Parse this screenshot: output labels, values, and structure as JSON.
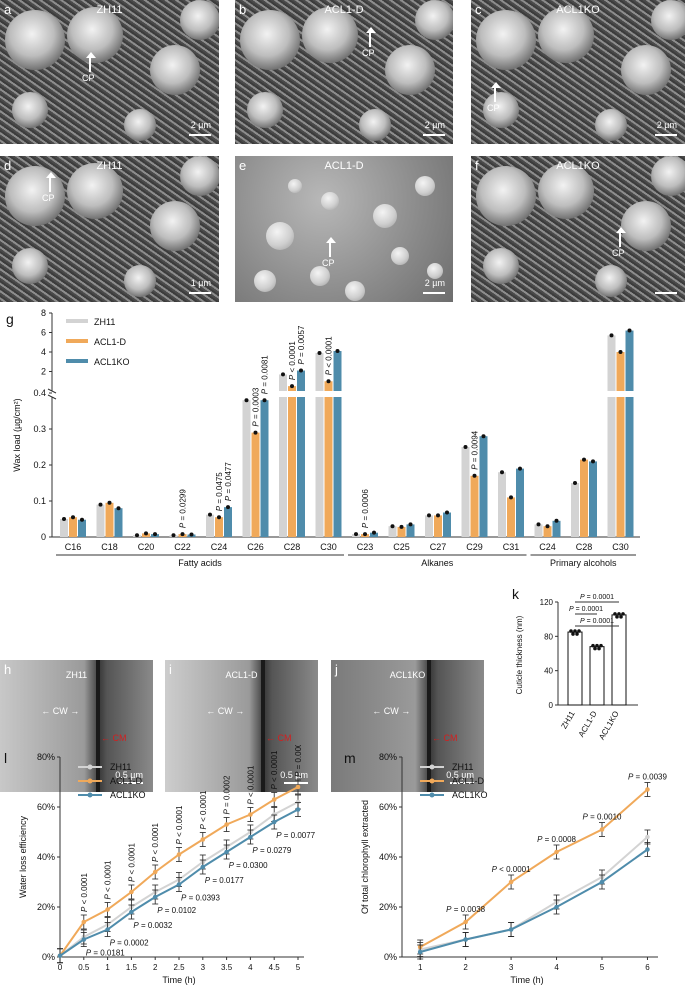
{
  "sem_panels": [
    {
      "letter": "a",
      "title": "ZH11",
      "cp": "CP",
      "scale": "2 µm"
    },
    {
      "letter": "b",
      "title": "ACL1-D",
      "cp": "CP",
      "scale": "2 µm"
    },
    {
      "letter": "c",
      "title": "ACL1KO",
      "cp": "CP",
      "scale": "2 µm"
    },
    {
      "letter": "d",
      "title": "ZH11",
      "cp": "CP",
      "scale": "1 µm"
    },
    {
      "letter": "e",
      "title": "ACL1-D",
      "cp": "CP",
      "scale": "2 µm"
    },
    {
      "letter": "f",
      "title": "ACL1KO",
      "cp": "CP",
      "scale": ""
    }
  ],
  "tem_panels": [
    {
      "letter": "h",
      "title": "ZH11",
      "cw": "CW",
      "cm": "CM",
      "scale": "0.5 µm"
    },
    {
      "letter": "i",
      "title": "ACL1-D",
      "cw": "CW",
      "cm": "CM",
      "scale": "0.5 µm"
    },
    {
      "letter": "j",
      "title": "ACL1KO",
      "cw": "CW",
      "cm": "CM",
      "scale": "0.5 µm"
    }
  ],
  "colors": {
    "ZH11": "#d3d3d3",
    "ACL1-D": "#f0a95a",
    "ACL1KO": "#4f8cab"
  },
  "chart_data": [
    {
      "panel": "g",
      "type": "bar",
      "ylabel": "Wax load (µg/cm²)",
      "legend": [
        "ZH11",
        "ACL1-D",
        "ACL1KO"
      ],
      "legend_position": "top-left",
      "broken_axis": {
        "lower": [
          0,
          0.4
        ],
        "upper": [
          0,
          8
        ]
      },
      "lower_ticks": [
        "0",
        "0.1",
        "0.2",
        "0.3",
        "0.4"
      ],
      "upper_ticks": [
        "2",
        "4",
        "6",
        "8"
      ],
      "categories": [
        "C16",
        "C18",
        "C20",
        "C22",
        "C24",
        "C26",
        "C28",
        "C30",
        "C23",
        "C25",
        "C27",
        "C29",
        "C31",
        "C24",
        "C28",
        "C30"
      ],
      "groups": [
        {
          "name": "Fatty acids",
          "count": 8
        },
        {
          "name": "Alkanes",
          "count": 5
        },
        {
          "name": "Primary alcohols",
          "count": 3
        }
      ],
      "series": [
        {
          "name": "ZH11",
          "values": [
            0.05,
            0.09,
            0.005,
            0.005,
            0.062,
            0.38,
            1.7,
            3.9,
            0.008,
            0.03,
            0.06,
            0.25,
            0.18,
            0.035,
            0.15,
            5.7
          ]
        },
        {
          "name": "ACL1-D",
          "values": [
            0.055,
            0.095,
            0.01,
            0.008,
            0.055,
            0.29,
            0.5,
            1.0,
            0.008,
            0.028,
            0.06,
            0.17,
            0.11,
            0.03,
            0.215,
            4.0
          ]
        },
        {
          "name": "ACL1KO",
          "values": [
            0.048,
            0.08,
            0.008,
            0.007,
            0.083,
            0.38,
            2.1,
            4.1,
            0.012,
            0.035,
            0.068,
            0.28,
            0.19,
            0.045,
            0.21,
            6.2
          ]
        }
      ],
      "annotations": [
        {
          "index": 3,
          "text": "P = 0.0299"
        },
        {
          "index": 4,
          "text": "P = 0.0475",
          "series": 1
        },
        {
          "index": 4,
          "text": "P = 0.0477",
          "series": 2
        },
        {
          "index": 5,
          "text": "P = 0.0003"
        },
        {
          "index": 5,
          "text": "P = 0.0081",
          "series": 2
        },
        {
          "index": 6,
          "text": "P < 0.0001"
        },
        {
          "index": 6,
          "text": "P = 0.0057",
          "series": 2
        },
        {
          "index": 7,
          "text": "P < 0.0001"
        },
        {
          "index": 8,
          "text": "P = 0.0006"
        },
        {
          "index": 11,
          "text": "P = 0.0094"
        }
      ]
    },
    {
      "panel": "k",
      "type": "bar",
      "ylabel": "Cuticle thickness (nm)",
      "categories": [
        "ZH11",
        "ACL1-D",
        "ACL1KO"
      ],
      "values": [
        85,
        68,
        105
      ],
      "ylim": [
        0,
        120
      ],
      "yticks": [
        "0",
        "40",
        "80",
        "120"
      ],
      "comparisons": [
        "P = 0.0001",
        "P = 0.0001",
        "P = 0.0001"
      ]
    },
    {
      "panel": "l",
      "type": "line",
      "xlabel": "Time (h)",
      "ylabel": "Water loss efficiency",
      "x": [
        0,
        0.5,
        1,
        1.5,
        2,
        2.5,
        3,
        3.5,
        4,
        4.5,
        5
      ],
      "xticks": [
        "0",
        "0.5",
        "1",
        "1.5",
        "2",
        "2.5",
        "3",
        "3.5",
        "4",
        "4.5",
        "5"
      ],
      "ylim": [
        0,
        80
      ],
      "yticks": [
        "0%",
        "20%",
        "40%",
        "60%",
        "80%"
      ],
      "legend": [
        "ZH11",
        "ACL1-D",
        "ACL1KO"
      ],
      "series": [
        {
          "name": "ZH11",
          "values": [
            0.5,
            8,
            13,
            20,
            26,
            31,
            38,
            44,
            50,
            57,
            62
          ]
        },
        {
          "name": "ACL1-D",
          "values": [
            0.5,
            14,
            19,
            26,
            34,
            41,
            47,
            53,
            57,
            63,
            68
          ]
        },
        {
          "name": "ACL1KO",
          "values": [
            0.5,
            7,
            11,
            18,
            24,
            29,
            36,
            42,
            48,
            54,
            59
          ]
        }
      ],
      "upper_p": [
        "P < 0.0001",
        "P < 0.0001",
        "P < 0.0001",
        "P < 0.0001",
        "P < 0.0001",
        "P < 0.0001",
        "P = 0.0002",
        "P < 0.0001",
        "P < 0.0001",
        "P = 0.0003"
      ],
      "lower_p": [
        "P = 0.0181",
        "P = 0.0002",
        "P = 0.0032",
        "P = 0.0102",
        "P = 0.0393",
        "P = 0.0177",
        "P = 0.0300",
        "P = 0.0279",
        "P = 0.0077"
      ]
    },
    {
      "panel": "m",
      "type": "line",
      "xlabel": "Time (h)",
      "ylabel": "Of total chlorophyll extracted",
      "x": [
        1,
        2,
        3,
        4,
        5,
        6
      ],
      "xticks": [
        "1",
        "2",
        "3",
        "4",
        "5",
        "6"
      ],
      "ylim": [
        0,
        80
      ],
      "yticks": [
        "0%",
        "20%",
        "40%",
        "60%",
        "80%"
      ],
      "legend": [
        "ZH11",
        "ACL1-D",
        "ACL1KO"
      ],
      "series": [
        {
          "name": "ZH11",
          "values": [
            3,
            7,
            11,
            22,
            32,
            48
          ]
        },
        {
          "name": "ACL1-D",
          "values": [
            4,
            14,
            30,
            42,
            51,
            67
          ]
        },
        {
          "name": "ACL1KO",
          "values": [
            2,
            7,
            11,
            20,
            30,
            43
          ]
        }
      ],
      "p_labels": [
        "P = 0.0038",
        "P < 0.0001",
        "P = 0.0008",
        "P = 0.0010",
        "P = 0.0039"
      ]
    }
  ],
  "panel_g_letter": "g",
  "panel_k_letter": "k",
  "panel_l_letter": "l",
  "panel_m_letter": "m"
}
